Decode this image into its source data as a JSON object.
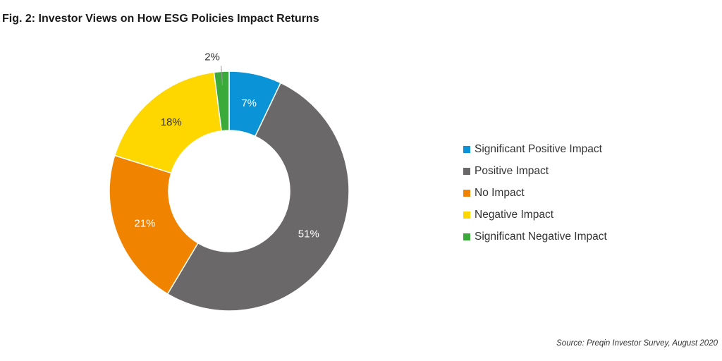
{
  "title": "Fig. 2: Investor Views on How ESG Policies Impact Returns",
  "source": "Source: Preqin Investor Survey, August 2020",
  "chart_data": {
    "type": "pie",
    "variant": "donut",
    "title": "Fig. 2: Investor Views on How ESG Policies Impact Returns",
    "legend_position": "right",
    "slices": [
      {
        "label": "Significant Positive Impact",
        "value": 7,
        "value_label": "7%",
        "color": "#0a93d6",
        "label_color": "#ffffff"
      },
      {
        "label": "Positive Impact",
        "value": 51,
        "value_label": "51%",
        "color": "#6a6869",
        "label_color": "#ffffff"
      },
      {
        "label": "No Impact",
        "value": 21,
        "value_label": "21%",
        "color": "#f08300",
        "label_color": "#ffffff"
      },
      {
        "label": "Negative Impact",
        "value": 18,
        "value_label": "18%",
        "color": "#fed700",
        "label_color": "#333333"
      },
      {
        "label": "Significant Negative Impact",
        "value": 2,
        "value_label": "2%",
        "color": "#3aab3a",
        "label_color": "#333333"
      }
    ]
  }
}
